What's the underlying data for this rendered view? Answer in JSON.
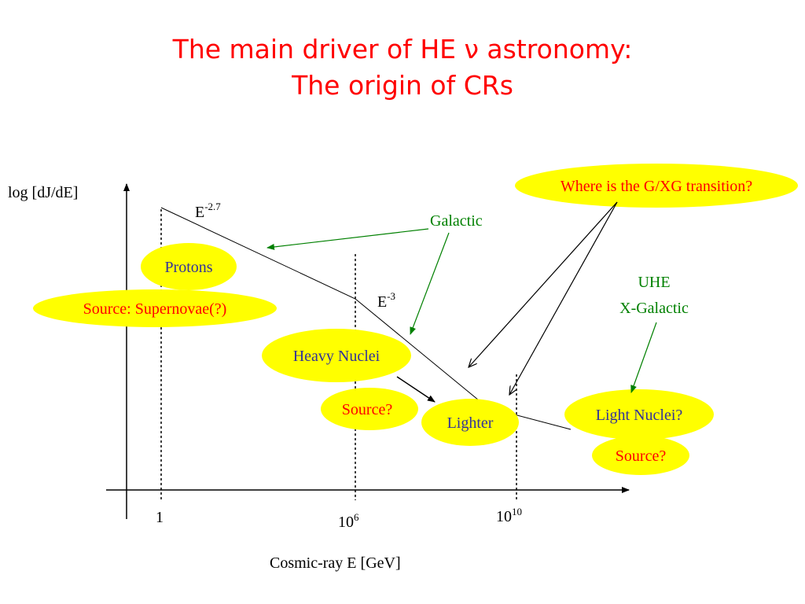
{
  "title": {
    "line1": "The main driver of HE ν astronomy:",
    "line2": "The origin of CRs"
  },
  "axes": {
    "ylabel": "log [dJ/dE]",
    "xlabel": "Cosmic-ray E [GeV]",
    "ticks": [
      {
        "base": "1",
        "exp": ""
      },
      {
        "base": "10",
        "exp": "6"
      },
      {
        "base": "10",
        "exp": "10"
      }
    ]
  },
  "spectrum": {
    "slope1": {
      "base": "E",
      "exp": "-2.7"
    },
    "slope2": {
      "base": "E",
      "exp": "-3"
    }
  },
  "labels": {
    "galactic": "Galactic",
    "uhe_line1": "UHE",
    "uhe_line2": "X-Galactic"
  },
  "bubbles": {
    "transition": "Where is the G/XG transition?",
    "protons": "Protons",
    "supernovae": "Source: Supernovae(?)",
    "heavy_nuclei": "Heavy Nuclei",
    "source_mid": "Source?",
    "lighter": "Lighter",
    "light_nuclei": "Light Nuclei?",
    "source_right": "Source?"
  },
  "colors": {
    "title": "#ff0000",
    "bubble_fill": "#ffff00",
    "blue_text": "#333399",
    "red_text": "#ff0000",
    "green": "#008000",
    "black": "#000000"
  }
}
